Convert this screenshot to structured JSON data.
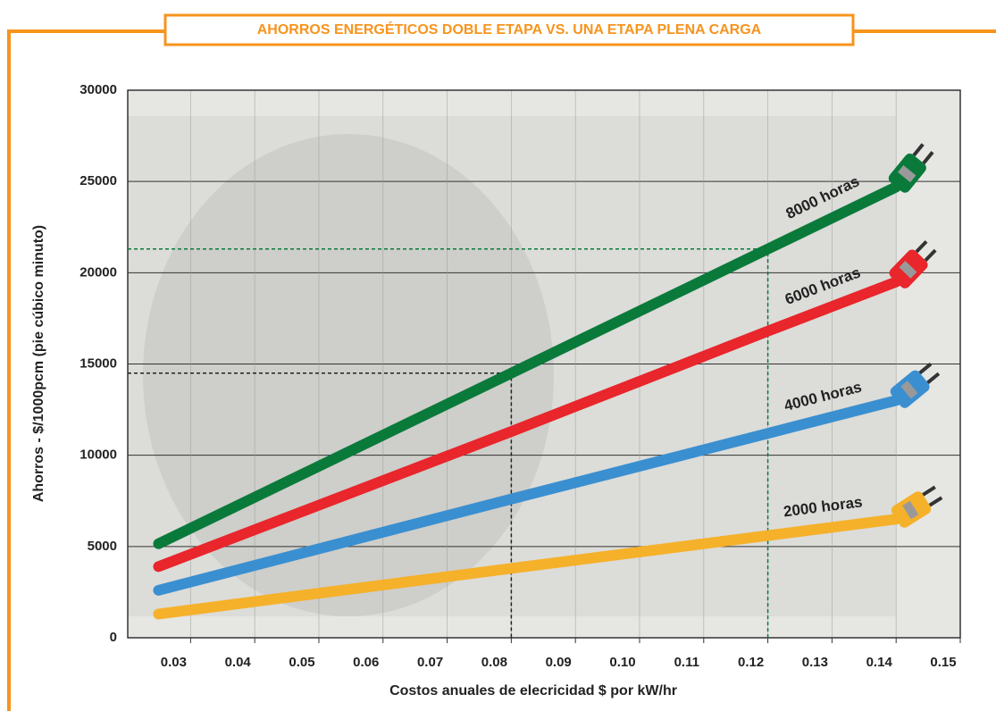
{
  "chart_data": {
    "type": "line",
    "title": "AHORROS ENERGÉTICOS DOBLE ETAPA VS. UNA ETAPA PLENA CARGA",
    "x_label": "Costos anuales de elecricidad $ por kW/hr",
    "y_label": "Ahorros - $/1000pcm (pie cúbico minuto)",
    "x": [
      0.025,
      0.08,
      0.12,
      0.14
    ],
    "series": [
      {
        "name": "8000 horas",
        "color": "#0a7a3a",
        "values": [
          5150,
          14500,
          21300,
          24700
        ]
      },
      {
        "name": "6000 horas",
        "color": "#e8262b",
        "values": [
          3900,
          11300,
          16800,
          19500
        ]
      },
      {
        "name": "4000 horas",
        "color": "#3a8fd0",
        "values": [
          2600,
          7600,
          11200,
          13000
        ]
      },
      {
        "name": "2000 horas",
        "color": "#f5b12a",
        "values": [
          1300,
          3800,
          5600,
          6500
        ]
      }
    ],
    "guides": [
      {
        "x": 0.08,
        "y": 14500,
        "color": "#222222"
      },
      {
        "x": 0.12,
        "y": 21300,
        "color": "#0a7a3a"
      }
    ],
    "xlim": [
      0.0202,
      0.15
    ],
    "xticks": [
      {
        "value": 0.03,
        "label": "0.03"
      },
      {
        "value": 0.04,
        "label": "0.04"
      },
      {
        "value": 0.05,
        "label": "0.05"
      },
      {
        "value": 0.06,
        "label": "0.06"
      },
      {
        "value": 0.07,
        "label": "0.07"
      },
      {
        "value": 0.08,
        "label": "0.08"
      },
      {
        "value": 0.09,
        "label": "0.09"
      },
      {
        "value": 0.1,
        "label": "0.10"
      },
      {
        "value": 0.11,
        "label": "0.11"
      },
      {
        "value": 0.12,
        "label": "0.12"
      },
      {
        "value": 0.13,
        "label": "0.13"
      },
      {
        "value": 0.14,
        "label": "0.14"
      },
      {
        "value": 0.15,
        "label": "0.15"
      }
    ],
    "ylim": [
      0,
      30000
    ],
    "yticks": [
      0,
      5000,
      10000,
      15000,
      20000,
      25000,
      30000
    ],
    "grid": true
  }
}
